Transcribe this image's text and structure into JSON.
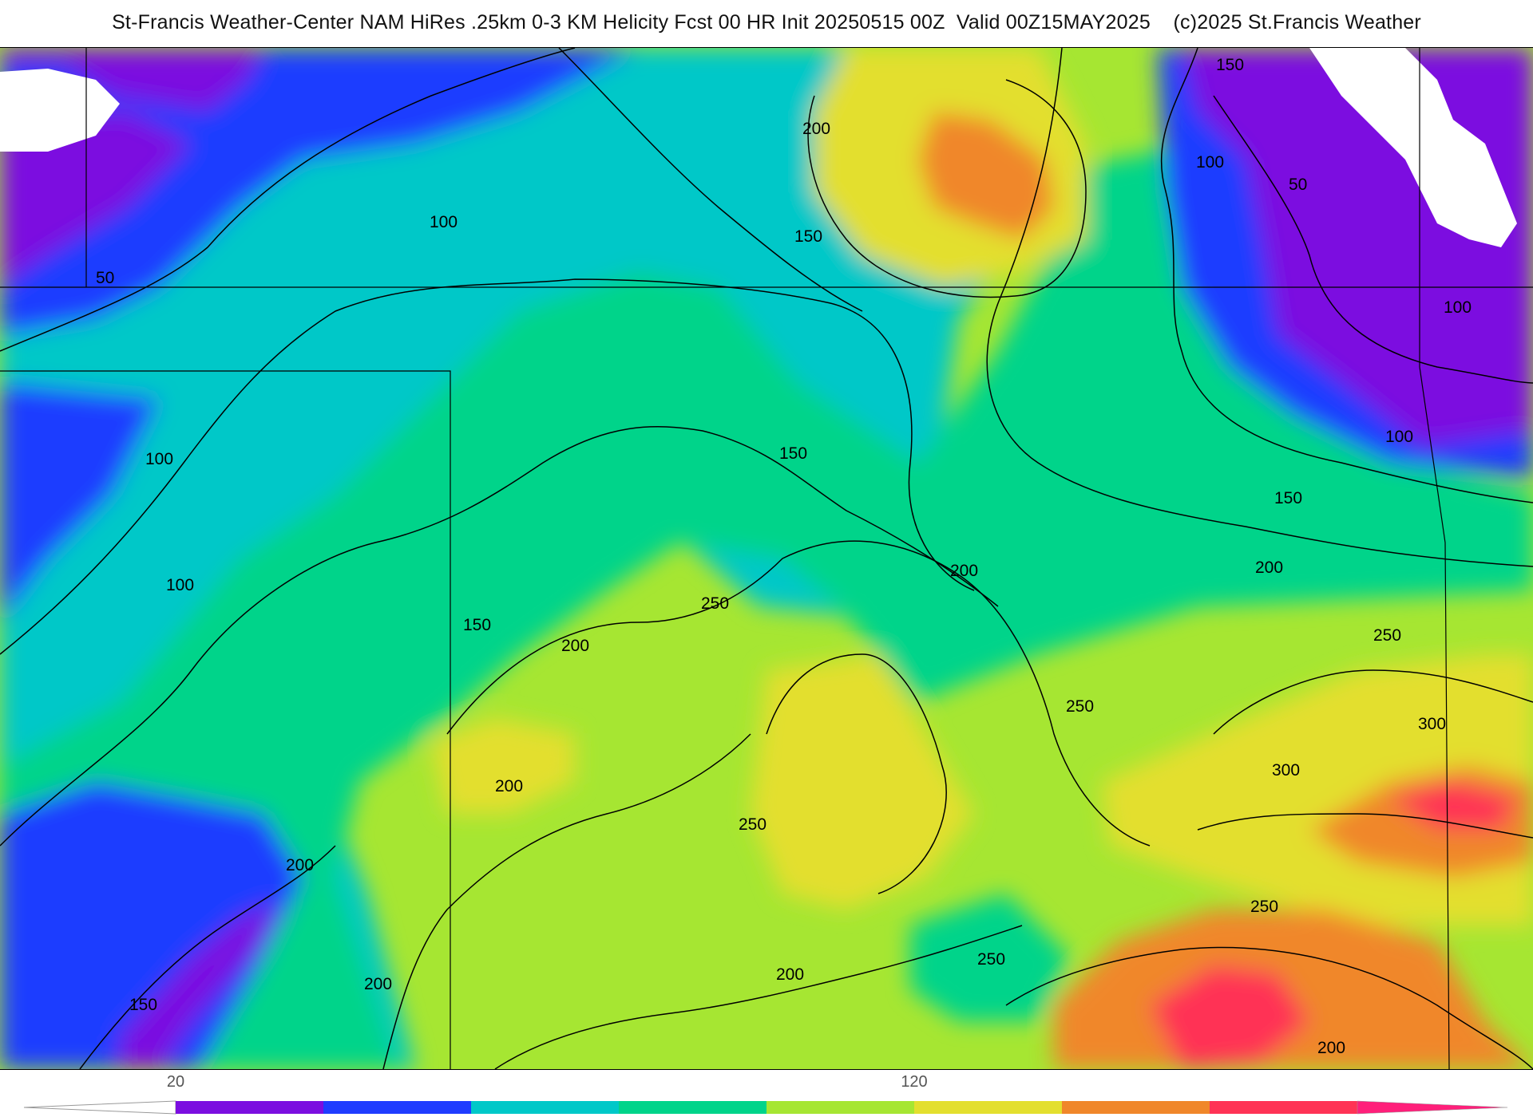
{
  "title": "St-Francis Weather-Center NAM HiRes .25km 0-3 KM Helicity Fcst 00 HR Init 20250515 00Z  Valid 00Z15MAY2025    (c)2025 St.Francis Weather",
  "colors": {
    "bin_0": "#ffffff",
    "bin_1": "#7b0ee0",
    "bin_2": "#1f3cff",
    "bin_3": "#00c8c8",
    "bin_4": "#00d48a",
    "bin_5": "#a6e632",
    "bin_6": "#e3df2e",
    "bin_7": "#f0872a",
    "bin_8": "#ff3355",
    "bin_9": "#ff1f7a",
    "contour_line": "#000000",
    "boundary_line": "#000000"
  },
  "colorbar": {
    "bins": [
      "#7b0ee0",
      "#1f3cff",
      "#00c8c8",
      "#00d48a",
      "#a6e632",
      "#e3df2e",
      "#f0872a",
      "#ff3355",
      "#ff1f7a"
    ],
    "tick_labels": [
      {
        "text": "20",
        "bin_index": 0
      },
      {
        "text": "120",
        "bin_index": 5
      }
    ]
  },
  "contour_labels": [
    "200",
    "150",
    "100",
    "50",
    "100",
    "150",
    "100",
    "50",
    "100",
    "100",
    "150",
    "150",
    "200",
    "200",
    "250",
    "250",
    "200",
    "150",
    "100",
    "250",
    "200",
    "250",
    "300",
    "300",
    "250",
    "250",
    "200",
    "200",
    "200",
    "150",
    "200"
  ]
}
